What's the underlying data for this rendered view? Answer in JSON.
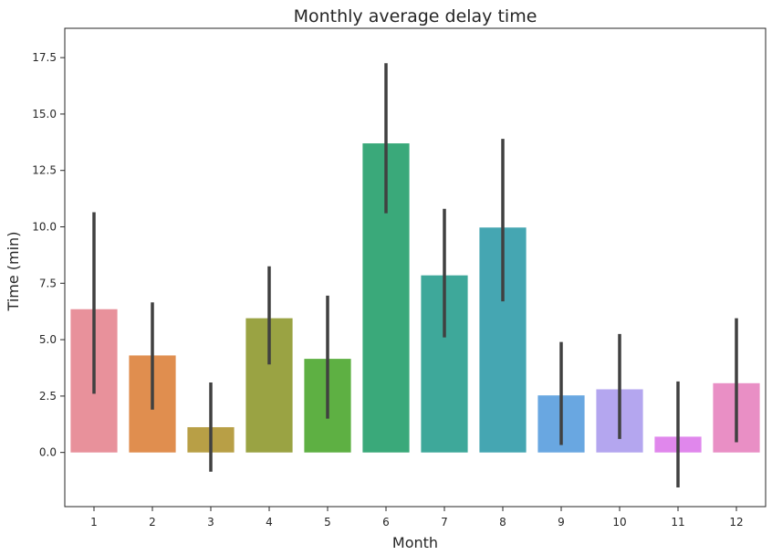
{
  "chart_data": {
    "type": "bar",
    "title": "Monthly average delay time",
    "xlabel": "Month",
    "ylabel": "Time (min)",
    "categories": [
      "1",
      "2",
      "3",
      "4",
      "5",
      "6",
      "7",
      "8",
      "9",
      "10",
      "11",
      "12"
    ],
    "values": [
      6.35,
      4.3,
      1.12,
      5.95,
      4.15,
      13.7,
      7.85,
      9.97,
      2.53,
      2.8,
      0.7,
      3.07
    ],
    "error_low": [
      2.6,
      1.9,
      -0.85,
      3.9,
      1.5,
      10.6,
      5.1,
      6.7,
      0.33,
      0.6,
      -1.55,
      0.45
    ],
    "error_high": [
      10.65,
      6.65,
      3.1,
      8.25,
      6.95,
      17.25,
      10.8,
      13.9,
      4.9,
      5.25,
      3.15,
      5.95
    ],
    "colors": [
      "#e8919b",
      "#e08e4f",
      "#b89f46",
      "#9aa343",
      "#5eb043",
      "#3aa97a",
      "#3ea89a",
      "#45a6b2",
      "#69a7e1",
      "#b4a6ef",
      "#e087ec",
      "#e98fc5"
    ],
    "error_color": "#404040",
    "yticks": [
      "0.0",
      "2.5",
      "5.0",
      "7.5",
      "10.0",
      "12.5",
      "15.0",
      "17.5"
    ],
    "ylim": [
      -2.4,
      18.8
    ],
    "grid": false,
    "legend": "none"
  }
}
